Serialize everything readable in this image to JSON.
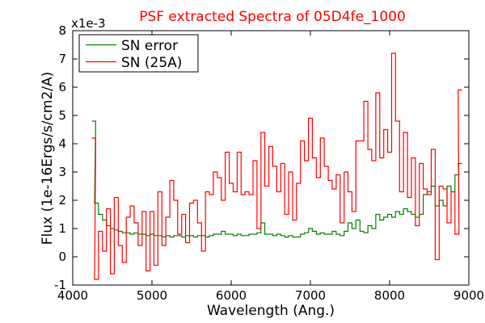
{
  "chart_data": {
    "type": "line",
    "title": "PSF extracted Spectra of 05D4fe_1000",
    "xlabel": "Wavelength (Ang.)",
    "ylabel": "Flux (1e-16Ergs/s/cm2/A)",
    "y_multiplier_label": "x1e-3",
    "xlim": [
      4000,
      9000
    ],
    "ylim": [
      -1,
      8
    ],
    "x_ticks": [
      4000,
      5000,
      6000,
      7000,
      8000,
      9000
    ],
    "y_ticks": [
      -1,
      0,
      1,
      2,
      3,
      4,
      5,
      6,
      7,
      8
    ],
    "legend_position": "top-left",
    "step_width": 50,
    "grid": false,
    "series": [
      {
        "name": "SN error",
        "color": "#008000",
        "x": [
          4265,
          4300,
          4350,
          4400,
          4450,
          4500,
          4550,
          4600,
          4650,
          4700,
          4750,
          4800,
          4850,
          4900,
          4950,
          5000,
          5050,
          5100,
          5150,
          5200,
          5250,
          5300,
          5350,
          5400,
          5450,
          5500,
          5550,
          5600,
          5650,
          5700,
          5750,
          5800,
          5850,
          5900,
          5950,
          6000,
          6050,
          6100,
          6150,
          6200,
          6250,
          6300,
          6350,
          6400,
          6450,
          6500,
          6550,
          6600,
          6650,
          6700,
          6750,
          6800,
          6850,
          6900,
          6950,
          7000,
          7050,
          7100,
          7150,
          7200,
          7250,
          7300,
          7350,
          7400,
          7450,
          7500,
          7550,
          7600,
          7650,
          7700,
          7750,
          7800,
          7850,
          7900,
          7950,
          8000,
          8050,
          8100,
          8150,
          8200,
          8250,
          8300,
          8350,
          8400,
          8450,
          8500,
          8550,
          8600,
          8650,
          8700,
          8750,
          8800,
          8850,
          8890
        ],
        "y": [
          4.8,
          1.9,
          1.5,
          1.3,
          1.1,
          1.0,
          0.95,
          0.9,
          0.85,
          0.85,
          0.8,
          0.85,
          0.8,
          0.8,
          0.75,
          0.8,
          0.75,
          0.75,
          0.7,
          0.75,
          0.7,
          0.75,
          0.75,
          0.7,
          0.75,
          0.75,
          0.7,
          0.75,
          0.75,
          0.7,
          0.75,
          0.8,
          0.8,
          0.9,
          0.8,
          0.8,
          0.75,
          0.8,
          0.75,
          0.75,
          0.8,
          0.8,
          0.85,
          1.2,
          0.8,
          0.8,
          0.75,
          0.8,
          0.75,
          0.7,
          0.75,
          0.7,
          0.7,
          0.8,
          0.85,
          1.0,
          0.9,
          0.8,
          0.85,
          0.8,
          0.8,
          0.9,
          0.8,
          0.75,
          0.9,
          1.2,
          1.0,
          1.3,
          0.9,
          0.85,
          1.1,
          1.0,
          1.5,
          1.3,
          1.4,
          1.5,
          1.4,
          1.6,
          1.5,
          1.7,
          1.6,
          1.5,
          1.4,
          1.5,
          2.2,
          2.3,
          2.5,
          1.8,
          2.0,
          1.8,
          2.5,
          2.3,
          2.9,
          3.3
        ]
      },
      {
        "name": "SN (25A)",
        "color": "#ff0000",
        "x": [
          4265,
          4300,
          4350,
          4400,
          4450,
          4500,
          4550,
          4600,
          4650,
          4700,
          4750,
          4800,
          4850,
          4900,
          4950,
          5000,
          5050,
          5100,
          5150,
          5200,
          5250,
          5300,
          5350,
          5400,
          5450,
          5500,
          5550,
          5600,
          5650,
          5700,
          5750,
          5800,
          5850,
          5900,
          5950,
          6000,
          6050,
          6100,
          6150,
          6200,
          6250,
          6300,
          6350,
          6400,
          6450,
          6500,
          6550,
          6600,
          6650,
          6700,
          6750,
          6800,
          6850,
          6900,
          6950,
          7000,
          7050,
          7100,
          7150,
          7200,
          7250,
          7300,
          7350,
          7400,
          7450,
          7500,
          7550,
          7600,
          7650,
          7700,
          7750,
          7800,
          7850,
          7900,
          7950,
          8000,
          8050,
          8100,
          8150,
          8200,
          8250,
          8300,
          8350,
          8400,
          8450,
          8500,
          8550,
          8600,
          8650,
          8700,
          8750,
          8800,
          8850,
          8890
        ],
        "y": [
          4.2,
          -0.8,
          0.9,
          0.2,
          1.7,
          -0.6,
          2.1,
          0.4,
          -0.2,
          1.4,
          1.8,
          1.2,
          0.4,
          1.6,
          -0.5,
          1.6,
          -0.3,
          2.3,
          0.4,
          1.4,
          2.7,
          2.0,
          0.8,
          1.5,
          0.5,
          1.9,
          2.0,
          1.2,
          0.2,
          2.3,
          2.2,
          3.0,
          2.8,
          2.0,
          3.7,
          2.6,
          2.3,
          3.7,
          2.2,
          2.3,
          2.2,
          3.4,
          1.0,
          4.4,
          2.5,
          3.9,
          3.2,
          2.3,
          3.3,
          1.5,
          3.0,
          1.3,
          2.6,
          4.1,
          3.4,
          4.9,
          3.5,
          2.8,
          4.2,
          3.2,
          2.7,
          2.4,
          2.9,
          1.2,
          3.0,
          2.3,
          1.6,
          4.1,
          4.1,
          5.5,
          3.8,
          3.4,
          5.8,
          3.5,
          4.5,
          3.7,
          7.2,
          4.8,
          2.3,
          4.4,
          2.1,
          3.5,
          1.1,
          3.3,
          2.4,
          2.2,
          3.8,
          -0.1,
          2.5,
          2.4,
          1.2,
          2.3,
          0.8,
          5.9
        ]
      }
    ]
  }
}
